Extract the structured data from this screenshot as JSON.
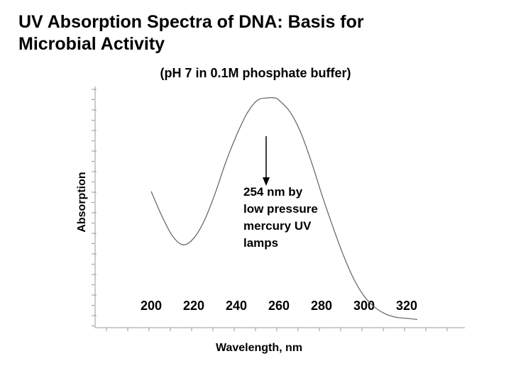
{
  "chart_data": {
    "type": "line",
    "title": "UV Absorption Spectra of DNA: Basis for Microbial Activity",
    "subtitle": "(pH 7 in 0.1M phosphate buffer)",
    "xlabel": "Wavelength, nm",
    "ylabel": "Absorption",
    "xlim": [
      200,
      320
    ],
    "x_ticks": [
      200,
      220,
      240,
      260,
      280,
      300,
      320
    ],
    "series": [
      {
        "x": [
          200,
          205,
          210,
          215,
          220,
          225,
          230,
          235,
          240,
          245,
          250,
          255,
          258,
          260,
          265,
          270,
          275,
          280,
          285,
          290,
          295,
          300,
          305,
          310,
          315,
          320,
          325
        ],
        "y": [
          0.58,
          0.47,
          0.38,
          0.34,
          0.37,
          0.45,
          0.57,
          0.71,
          0.83,
          0.93,
          0.99,
          1.0,
          1.0,
          0.99,
          0.94,
          0.85,
          0.72,
          0.57,
          0.43,
          0.3,
          0.19,
          0.11,
          0.06,
          0.03,
          0.015,
          0.01,
          0.005
        ]
      }
    ],
    "annotation": {
      "x": 254,
      "text_lines": [
        "254 nm by",
        "low pressure",
        "mercury UV",
        "lamps"
      ]
    },
    "colors": {
      "line": "#606060",
      "axis": "#999999",
      "text": "#000000"
    },
    "grid": false
  }
}
